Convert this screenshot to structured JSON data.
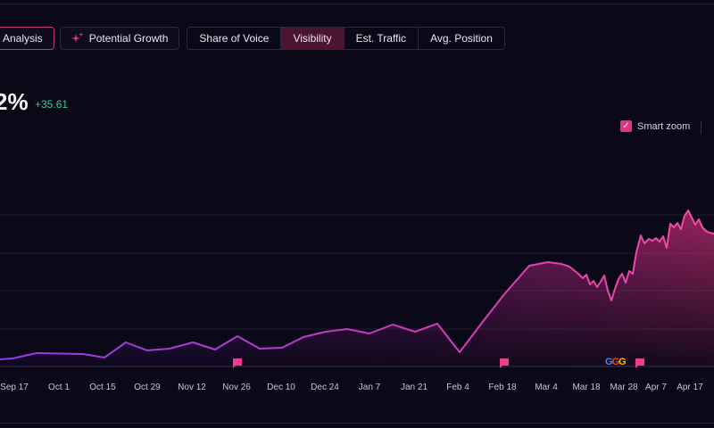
{
  "toolbar": {
    "analysis_label": "Analysis",
    "growth_label": "Potential Growth",
    "tabs": [
      {
        "label": "Share of Voice",
        "active": false
      },
      {
        "label": "Visibility",
        "active": true
      },
      {
        "label": "Est. Traffic",
        "active": false
      },
      {
        "label": "Avg. Position",
        "active": false
      }
    ]
  },
  "summary": {
    "value": "2%",
    "delta": "+35.61",
    "delta_color": "#3ec98a"
  },
  "zoom": {
    "label": "Smart zoom",
    "checked": true
  },
  "colors": {
    "accent": "#e0338a",
    "active_tab": "#4a1532",
    "line_start": "#8e3fe8",
    "line_end": "#ff4aa6"
  },
  "chart_data": {
    "type": "area",
    "x_ticks": [
      "Sep 17",
      "Oct 1",
      "Oct 15",
      "Oct 29",
      "Nov 12",
      "Nov 26",
      "Dec 10",
      "Dec 24",
      "Jan 7",
      "Jan 21",
      "Feb 4",
      "Feb 18",
      "Mar 4",
      "Mar 18",
      "Mar 28",
      "Apr 7",
      "Apr 17"
    ],
    "points": [
      [
        0,
        8
      ],
      [
        14,
        9
      ],
      [
        41,
        15
      ],
      [
        93,
        14
      ],
      [
        117,
        10
      ],
      [
        141,
        27
      ],
      [
        165,
        18
      ],
      [
        190,
        20
      ],
      [
        216,
        27
      ],
      [
        241,
        19
      ],
      [
        266,
        34
      ],
      [
        291,
        20
      ],
      [
        316,
        21
      ],
      [
        340,
        33
      ],
      [
        365,
        39
      ],
      [
        389,
        42
      ],
      [
        414,
        37
      ],
      [
        440,
        47
      ],
      [
        465,
        39
      ],
      [
        490,
        48
      ],
      [
        515,
        16
      ],
      [
        540,
        49
      ],
      [
        565,
        81
      ],
      [
        593,
        113
      ],
      [
        614,
        117
      ],
      [
        629,
        115
      ],
      [
        638,
        112
      ],
      [
        648,
        104
      ],
      [
        653,
        99
      ],
      [
        657,
        103
      ],
      [
        661,
        92
      ],
      [
        665,
        96
      ],
      [
        669,
        89
      ],
      [
        673,
        95
      ],
      [
        677,
        102
      ],
      [
        681,
        85
      ],
      [
        685,
        74
      ],
      [
        689,
        87
      ],
      [
        693,
        98
      ],
      [
        697,
        104
      ],
      [
        701,
        94
      ],
      [
        705,
        107
      ],
      [
        709,
        104
      ],
      [
        713,
        128
      ],
      [
        718,
        147
      ],
      [
        722,
        138
      ],
      [
        727,
        143
      ],
      [
        731,
        141
      ],
      [
        735,
        144
      ],
      [
        739,
        140
      ],
      [
        743,
        146
      ],
      [
        747,
        133
      ],
      [
        751,
        160
      ],
      [
        755,
        156
      ],
      [
        759,
        161
      ],
      [
        763,
        154
      ],
      [
        767,
        169
      ],
      [
        771,
        175
      ],
      [
        775,
        167
      ],
      [
        779,
        159
      ],
      [
        783,
        165
      ],
      [
        787,
        156
      ],
      [
        791,
        152
      ],
      [
        795,
        150
      ],
      [
        800,
        149
      ]
    ],
    "y_grid": [
      0,
      42,
      85,
      127,
      170
    ],
    "markers": [
      {
        "x": 266,
        "type": "flag"
      },
      {
        "x": 565,
        "type": "flag"
      },
      {
        "x": 717,
        "type": "flag"
      }
    ],
    "grid": true
  }
}
